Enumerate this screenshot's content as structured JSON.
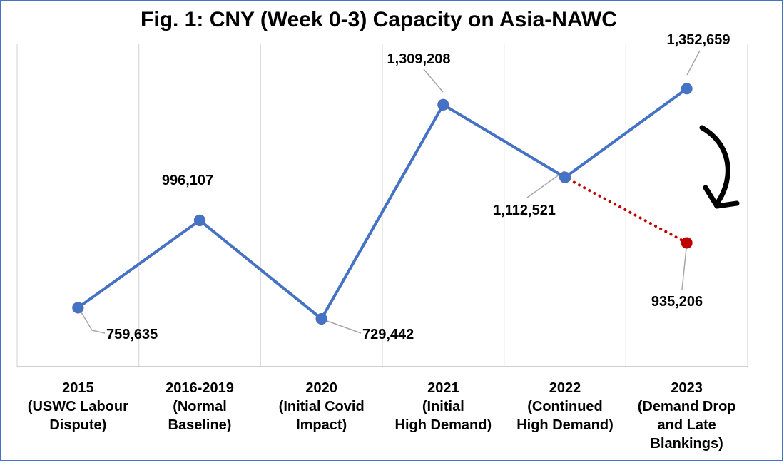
{
  "chart_data": {
    "type": "line",
    "title": "Fig. 1: CNY (Week 0-3) Capacity on Asia-NAWC",
    "categories": [
      [
        "2015",
        "(USWC Labour",
        "Dispute)"
      ],
      [
        "2016-2019",
        "(Normal",
        "Baseline)"
      ],
      [
        "2020",
        "(Initial Covid",
        "Impact)"
      ],
      [
        "2021",
        "(Initial",
        "High Demand)"
      ],
      [
        "2022",
        "(Continued",
        "High Demand)"
      ],
      [
        "2023",
        "(Demand Drop",
        "and Late",
        "Blankings)"
      ]
    ],
    "series": [
      {
        "values": [
          759635,
          996107,
          729442,
          1309208,
          1112521,
          935206
        ],
        "color": "#c00000",
        "style": "dotted",
        "marker": "circle"
      },
      {
        "values": [
          759635,
          996107,
          729442,
          1309208,
          1112521,
          1352659
        ],
        "color": "#4472c4",
        "style": "solid",
        "marker": "circle"
      }
    ],
    "data_labels": [
      "759,635",
      "996,107",
      "729,442",
      "1,309,208",
      "1,112,521",
      "935,206",
      "1,352,659"
    ],
    "ylim": [
      600000,
      1400000
    ],
    "grid": {
      "vertical": true,
      "horizontal": false
    },
    "annotation": "curved-down-arrow"
  }
}
